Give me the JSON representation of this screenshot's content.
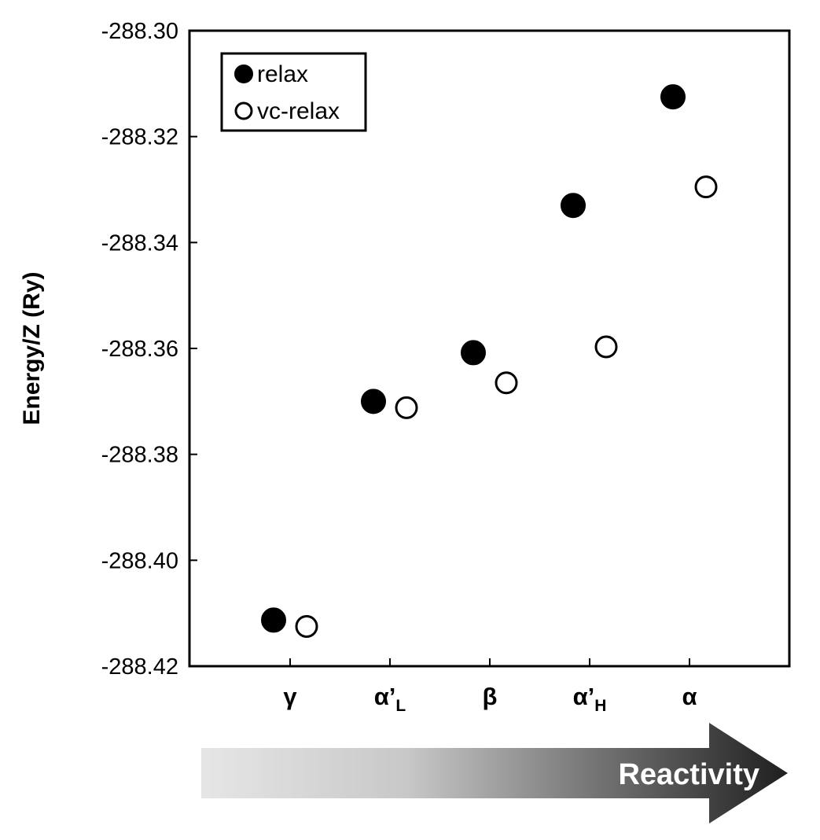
{
  "chart_data": {
    "type": "scatter",
    "title": "",
    "xlabel": "",
    "ylabel": "Energy/Z (Ry)",
    "ylim": [
      -288.42,
      -288.3
    ],
    "yticks": [
      "-288.30",
      "-288.32",
      "-288.34",
      "-288.36",
      "-288.38",
      "-288.40",
      "-288.42"
    ],
    "categories": [
      {
        "main": "γ",
        "sub": ""
      },
      {
        "main": "α’",
        "sub": "L"
      },
      {
        "main": "β",
        "sub": ""
      },
      {
        "main": "α’",
        "sub": "H"
      },
      {
        "main": "α",
        "sub": ""
      }
    ],
    "series": [
      {
        "name": "relax",
        "marker": "filled-circle",
        "color": "#000000",
        "values": [
          -288.4113,
          -288.37,
          -288.3608,
          -288.333,
          -288.3125
        ]
      },
      {
        "name": "vc-relax",
        "marker": "open-circle",
        "color": "#000000",
        "values": [
          -288.4125,
          -288.3712,
          -288.3665,
          -288.3597,
          -288.3295
        ]
      }
    ],
    "legend": {
      "placement": "top-left"
    },
    "grid": false,
    "arrow": {
      "label": "Reactivity",
      "gradient_start": "#e6e6e6",
      "gradient_end": "#1f1f1f"
    }
  }
}
